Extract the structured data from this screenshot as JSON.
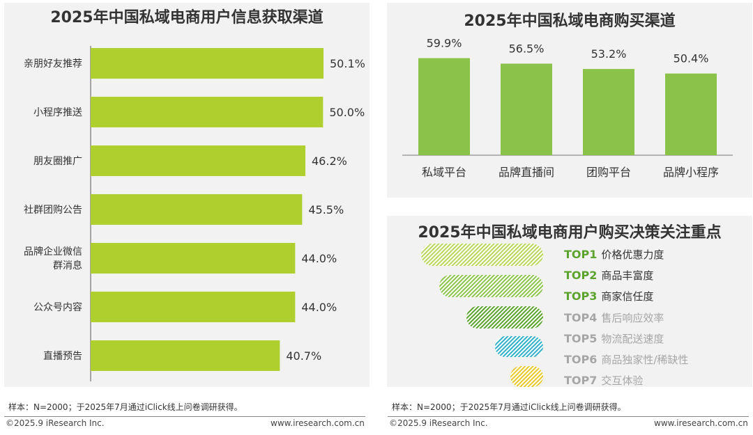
{
  "colors": {
    "bar": "#afcf2e",
    "bar_right": "#8bc34a",
    "text": "#333333",
    "top_highlight": "#5ba32c",
    "top_muted": "#a6a6a6",
    "hatch_1": "#b9d659",
    "hatch_2": "#8cc34a",
    "hatch_3": "#5ba32c",
    "hatch_4": "#2fb0c8",
    "hatch_5": "#e8c828"
  },
  "chart_data": [
    {
      "type": "bar",
      "orientation": "horizontal",
      "title": "2025年中国私域电商用户信息获取渠道",
      "categories": [
        "亲朋好友推荐",
        "小程序推送",
        "朋友圈推广",
        "社群团购公告",
        "品牌企业微信群消息",
        "公众号内容",
        "直播预告"
      ],
      "category_lines": [
        [
          "亲朋好友推荐"
        ],
        [
          "小程序推送"
        ],
        [
          "朋友圈推广"
        ],
        [
          "社群团购公告"
        ],
        [
          "品牌企业微信",
          "群消息"
        ],
        [
          "公众号内容"
        ],
        [
          "直播预告"
        ]
      ],
      "values": [
        50.1,
        50.0,
        46.2,
        45.5,
        44.0,
        44.0,
        40.7
      ],
      "labels": [
        "50.1%",
        "50.0%",
        "46.2%",
        "45.5%",
        "44.0%",
        "44.0%",
        "40.7%"
      ],
      "xlim": [
        0,
        60
      ]
    },
    {
      "type": "bar",
      "title": "2025年中国私域电商购买渠道",
      "categories": [
        "私域平台",
        "品牌直播间",
        "团购平台",
        "品牌小程序"
      ],
      "values": [
        59.9,
        56.5,
        53.2,
        50.4
      ],
      "labels": [
        "59.9%",
        "56.5%",
        "53.2%",
        "50.4%"
      ],
      "ylim": [
        0,
        70
      ]
    }
  ],
  "funnel": {
    "title": "2025年中国私域电商用户购买决策关注重点",
    "items": [
      {
        "rank": "TOP1",
        "label": "价格优惠力度",
        "highlight": true
      },
      {
        "rank": "TOP2",
        "label": "商品丰富度",
        "highlight": true
      },
      {
        "rank": "TOP3",
        "label": "商家信任度",
        "highlight": true
      },
      {
        "rank": "TOP4",
        "label": "售后响应效率",
        "highlight": false
      },
      {
        "rank": "TOP5",
        "label": "物流配送速度",
        "highlight": false
      },
      {
        "rank": "TOP6",
        "label": "商品独家性/稀缺性",
        "highlight": false
      },
      {
        "rank": "TOP7",
        "label": "交互体验",
        "highlight": false
      }
    ]
  },
  "footnotes": {
    "left": "样本：N=2000；于2025年7月通过iClick线上问卷调研获得。",
    "right": "样本：N=2000；于2025年7月通过iClick线上问卷调研获得。"
  },
  "footer": {
    "copyright_left": "©2025.9 iResearch Inc.",
    "url_left": "www.iresearch.com.cn",
    "copyright_right": "©2025.9 iResearch Inc.",
    "url_right": "www.iresearch.com.cn"
  }
}
